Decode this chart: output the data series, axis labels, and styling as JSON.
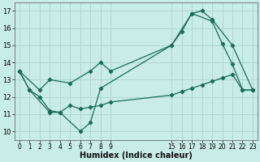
{
  "xlabel": "Humidex (Indice chaleur)",
  "bg_color": "#c8ece6",
  "line_color": "#1a6b5a",
  "grid_color": "#b0d8d0",
  "xtick_values": [
    0,
    1,
    2,
    3,
    4,
    5,
    6,
    7,
    8,
    9,
    15,
    16,
    17,
    18,
    19,
    20,
    21,
    22,
    23
  ],
  "yticks": [
    10,
    11,
    12,
    13,
    14,
    15,
    16,
    17
  ],
  "ylim": [
    9.5,
    17.5
  ],
  "lines": [
    {
      "x": [
        0,
        1,
        3,
        4,
        6,
        7,
        8,
        15,
        16,
        17,
        19,
        20,
        21,
        22,
        23
      ],
      "y": [
        13.5,
        12.4,
        11.1,
        11.1,
        10.0,
        10.5,
        12.5,
        15.0,
        15.8,
        16.85,
        16.4,
        15.1,
        13.9,
        12.4,
        12.4
      ]
    },
    {
      "x": [
        0,
        1,
        2,
        3,
        4,
        5,
        6,
        7,
        8,
        9,
        15,
        16,
        17,
        18,
        19,
        20,
        21,
        22,
        23
      ],
      "y": [
        13.5,
        12.4,
        12.0,
        11.2,
        11.1,
        11.5,
        11.3,
        11.4,
        11.5,
        11.7,
        12.1,
        12.3,
        12.5,
        12.7,
        12.9,
        13.1,
        13.3,
        12.4,
        12.4
      ]
    },
    {
      "x": [
        0,
        2,
        3,
        5,
        7,
        8,
        9,
        15,
        17,
        18,
        19,
        21,
        23
      ],
      "y": [
        13.5,
        12.4,
        13.0,
        12.8,
        13.5,
        14.0,
        13.5,
        15.0,
        16.85,
        17.0,
        16.5,
        15.0,
        12.4
      ]
    }
  ]
}
